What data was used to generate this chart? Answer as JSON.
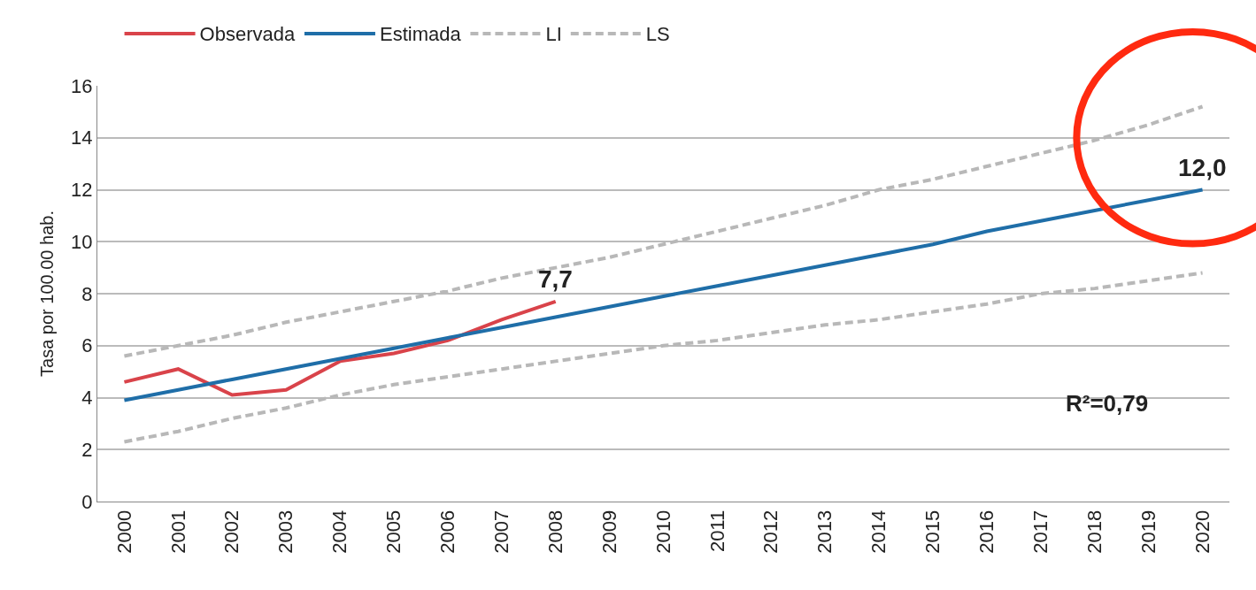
{
  "chart_data": {
    "type": "line",
    "categories": [
      "2000",
      "2001",
      "2002",
      "2003",
      "2004",
      "2005",
      "2006",
      "2007",
      "2008",
      "2009",
      "2010",
      "2011",
      "2012",
      "2013",
      "2014",
      "2015",
      "2016",
      "2017",
      "2018",
      "2019",
      "2020"
    ],
    "ylabel": "Tasa por 100.00 hab.",
    "ylim": [
      0,
      16
    ],
    "yticks": [
      0,
      2,
      4,
      6,
      8,
      10,
      12,
      14,
      16
    ],
    "grid": "y",
    "legend": "top",
    "marker": "none",
    "series": [
      {
        "name": "Observada",
        "color": "#d9434a",
        "line_style": "solid",
        "values": [
          4.6,
          5.1,
          4.1,
          4.3,
          5.4,
          5.7,
          6.2,
          7.0,
          7.7,
          null,
          null,
          null,
          null,
          null,
          null,
          null,
          null,
          null,
          null,
          null,
          null
        ]
      },
      {
        "name": "Estimada",
        "color": "#1f6ea8",
        "line_style": "solid",
        "values": [
          3.9,
          4.3,
          4.7,
          5.1,
          5.5,
          5.9,
          6.3,
          6.7,
          7.1,
          7.5,
          7.9,
          8.3,
          8.7,
          9.1,
          9.5,
          9.9,
          10.4,
          10.8,
          11.2,
          11.6,
          12.0
        ]
      },
      {
        "name": "LI",
        "color": "#b8b8b8",
        "line_style": "dashed",
        "values": [
          2.3,
          2.7,
          3.2,
          3.6,
          4.1,
          4.5,
          4.8,
          5.1,
          5.4,
          5.7,
          6.0,
          6.2,
          6.5,
          6.8,
          7.0,
          7.3,
          7.6,
          8.0,
          8.2,
          8.5,
          8.8
        ]
      },
      {
        "name": "LS",
        "color": "#b8b8b8",
        "line_style": "dashed",
        "values": [
          5.6,
          6.0,
          6.4,
          6.9,
          7.3,
          7.7,
          8.1,
          8.6,
          9.0,
          9.4,
          9.9,
          10.4,
          10.9,
          11.4,
          12.0,
          12.4,
          12.9,
          13.4,
          13.9,
          14.5,
          15.2
        ]
      }
    ],
    "annotations": [
      {
        "text": "7,7",
        "x": "2008",
        "y": 7.7
      },
      {
        "text": "12,0",
        "x": "2020",
        "y": 12.0
      },
      "R²=0,79"
    ]
  }
}
